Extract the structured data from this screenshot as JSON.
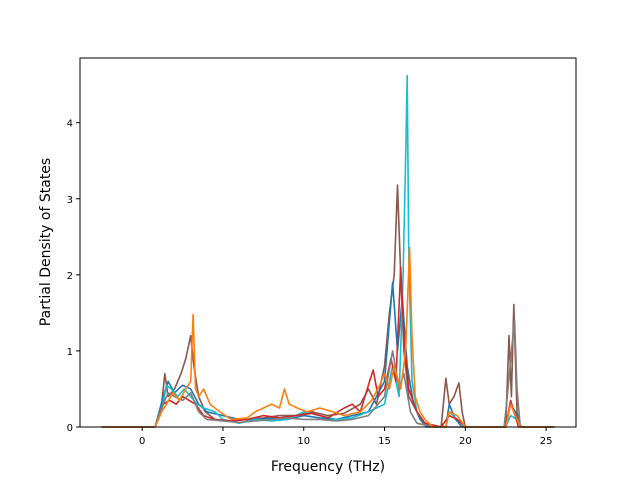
{
  "chart_data": {
    "type": "line",
    "title": "",
    "xlabel": "Frequency (THz)",
    "ylabel": "Partial Density of States",
    "xlim": [
      -3.85,
      26.85
    ],
    "ylim": [
      0,
      4.85
    ],
    "xticks": [
      0,
      5,
      10,
      15,
      20,
      25
    ],
    "yticks": [
      0,
      1,
      2,
      3,
      4
    ],
    "grid": false,
    "legend": "none",
    "series": [
      {
        "color": "#8c564b",
        "points": [
          [
            -2.5,
            0
          ],
          [
            0.8,
            0
          ],
          [
            1.2,
            0.3
          ],
          [
            1.4,
            0.7
          ],
          [
            1.6,
            0.4
          ],
          [
            2.0,
            0.5
          ],
          [
            2.4,
            0.7
          ],
          [
            2.7,
            0.9
          ],
          [
            3.0,
            1.2
          ],
          [
            3.2,
            0.8
          ],
          [
            3.5,
            0.4
          ],
          [
            3.9,
            0.2
          ],
          [
            4.5,
            0.1
          ],
          [
            5.5,
            0.08
          ],
          [
            6.5,
            0.1
          ],
          [
            7.5,
            0.12
          ],
          [
            8.5,
            0.15
          ],
          [
            9.5,
            0.15
          ],
          [
            10.5,
            0.2
          ],
          [
            11.5,
            0.15
          ],
          [
            12.5,
            0.18
          ],
          [
            13.5,
            0.3
          ],
          [
            14.0,
            0.5
          ],
          [
            14.5,
            0.3
          ],
          [
            15.0,
            0.8
          ],
          [
            15.3,
            1.5
          ],
          [
            15.6,
            2.0
          ],
          [
            15.8,
            3.18
          ],
          [
            16.0,
            2.0
          ],
          [
            16.2,
            1.0
          ],
          [
            16.5,
            0.4
          ],
          [
            17.0,
            0.2
          ],
          [
            17.5,
            0.05
          ],
          [
            18.5,
            0
          ],
          [
            18.8,
            0.64
          ],
          [
            19.0,
            0.3
          ],
          [
            19.3,
            0.4
          ],
          [
            19.6,
            0.58
          ],
          [
            19.8,
            0.2
          ],
          [
            20.0,
            0
          ],
          [
            22.5,
            0
          ],
          [
            22.7,
            1.2
          ],
          [
            22.85,
            0.4
          ],
          [
            23.0,
            1.61
          ],
          [
            23.2,
            0.2
          ],
          [
            23.4,
            0
          ],
          [
            25.5,
            0
          ]
        ]
      },
      {
        "color": "#1f77b4",
        "points": [
          [
            -2.5,
            0
          ],
          [
            0.8,
            0
          ],
          [
            1.3,
            0.4
          ],
          [
            1.6,
            0.6
          ],
          [
            2.0,
            0.45
          ],
          [
            2.5,
            0.55
          ],
          [
            3.0,
            0.5
          ],
          [
            3.5,
            0.3
          ],
          [
            4.0,
            0.2
          ],
          [
            5.0,
            0.15
          ],
          [
            6.0,
            0.1
          ],
          [
            7.0,
            0.1
          ],
          [
            8.0,
            0.12
          ],
          [
            9.0,
            0.1
          ],
          [
            10.0,
            0.15
          ],
          [
            11.0,
            0.12
          ],
          [
            12.0,
            0.1
          ],
          [
            13.0,
            0.15
          ],
          [
            14.0,
            0.2
          ],
          [
            15.0,
            0.6
          ],
          [
            15.5,
            1.9
          ],
          [
            15.8,
            1.0
          ],
          [
            16.1,
            1.7
          ],
          [
            16.4,
            0.8
          ],
          [
            16.8,
            0.3
          ],
          [
            17.2,
            0.1
          ],
          [
            17.6,
            0
          ],
          [
            18.8,
            0
          ],
          [
            19.0,
            0.3
          ],
          [
            19.4,
            0.1
          ],
          [
            19.8,
            0
          ],
          [
            22.5,
            0
          ],
          [
            22.8,
            0.3
          ],
          [
            23.1,
            0.2
          ],
          [
            23.4,
            0
          ],
          [
            25.5,
            0
          ]
        ]
      },
      {
        "color": "#17becf",
        "points": [
          [
            -2.5,
            0
          ],
          [
            0.8,
            0
          ],
          [
            1.2,
            0.2
          ],
          [
            1.5,
            0.55
          ],
          [
            1.8,
            0.5
          ],
          [
            2.2,
            0.4
          ],
          [
            2.6,
            0.5
          ],
          [
            3.0,
            0.4
          ],
          [
            3.4,
            0.3
          ],
          [
            3.8,
            0.25
          ],
          [
            4.5,
            0.2
          ],
          [
            5.0,
            0.1
          ],
          [
            6.0,
            0.05
          ],
          [
            7.0,
            0.1
          ],
          [
            8.0,
            0.08
          ],
          [
            9.0,
            0.1
          ],
          [
            10.0,
            0.2
          ],
          [
            11.0,
            0.15
          ],
          [
            12.0,
            0.1
          ],
          [
            13.0,
            0.12
          ],
          [
            14.0,
            0.2
          ],
          [
            15.0,
            0.3
          ],
          [
            15.5,
            0.8
          ],
          [
            15.9,
            0.4
          ],
          [
            16.15,
            2.0
          ],
          [
            16.3,
            3.5
          ],
          [
            16.4,
            4.62
          ],
          [
            16.5,
            2.2
          ],
          [
            16.7,
            0.6
          ],
          [
            17.0,
            0.2
          ],
          [
            17.5,
            0.05
          ],
          [
            18.0,
            0
          ],
          [
            18.8,
            0
          ],
          [
            19.0,
            0.2
          ],
          [
            19.5,
            0.1
          ],
          [
            20.0,
            0
          ],
          [
            22.5,
            0
          ],
          [
            22.8,
            0.15
          ],
          [
            23.2,
            0.1
          ],
          [
            23.5,
            0
          ],
          [
            25.5,
            0
          ]
        ]
      },
      {
        "color": "#d62728",
        "points": [
          [
            -2.5,
            0
          ],
          [
            0.8,
            0
          ],
          [
            1.3,
            0.3
          ],
          [
            1.7,
            0.35
          ],
          [
            2.1,
            0.3
          ],
          [
            2.5,
            0.4
          ],
          [
            2.9,
            0.35
          ],
          [
            3.3,
            0.3
          ],
          [
            3.8,
            0.15
          ],
          [
            4.5,
            0.1
          ],
          [
            5.5,
            0.08
          ],
          [
            6.5,
            0.1
          ],
          [
            7.5,
            0.15
          ],
          [
            8.5,
            0.12
          ],
          [
            9.5,
            0.15
          ],
          [
            10.5,
            0.18
          ],
          [
            11.5,
            0.12
          ],
          [
            12.5,
            0.25
          ],
          [
            13.0,
            0.3
          ],
          [
            13.5,
            0.2
          ],
          [
            14.0,
            0.55
          ],
          [
            14.3,
            0.75
          ],
          [
            14.6,
            0.4
          ],
          [
            15.0,
            0.5
          ],
          [
            15.4,
            0.9
          ],
          [
            15.7,
            0.6
          ],
          [
            16.0,
            2.1
          ],
          [
            16.2,
            1.2
          ],
          [
            16.5,
            0.5
          ],
          [
            17.0,
            0.2
          ],
          [
            17.5,
            0.05
          ],
          [
            18.5,
            0
          ],
          [
            19.0,
            0.15
          ],
          [
            19.5,
            0.1
          ],
          [
            20.0,
            0
          ],
          [
            22.5,
            0
          ],
          [
            22.8,
            0.35
          ],
          [
            23.0,
            0.2
          ],
          [
            23.3,
            0
          ],
          [
            25.5,
            0
          ]
        ]
      },
      {
        "color": "#7f7f7f",
        "points": [
          [
            -2.5,
            0
          ],
          [
            0.8,
            0
          ],
          [
            1.2,
            0.25
          ],
          [
            1.6,
            0.45
          ],
          [
            2.0,
            0.4
          ],
          [
            2.5,
            0.35
          ],
          [
            3.0,
            0.45
          ],
          [
            3.5,
            0.2
          ],
          [
            4.0,
            0.1
          ],
          [
            5.0,
            0.08
          ],
          [
            6.0,
            0.06
          ],
          [
            7.0,
            0.08
          ],
          [
            8.0,
            0.1
          ],
          [
            9.0,
            0.12
          ],
          [
            10.0,
            0.1
          ],
          [
            11.0,
            0.1
          ],
          [
            12.0,
            0.08
          ],
          [
            13.0,
            0.1
          ],
          [
            14.0,
            0.15
          ],
          [
            15.0,
            0.4
          ],
          [
            15.5,
            1.0
          ],
          [
            15.9,
            0.5
          ],
          [
            16.2,
            0.7
          ],
          [
            16.6,
            0.2
          ],
          [
            17.0,
            0.05
          ],
          [
            18.0,
            0
          ],
          [
            22.4,
            0
          ],
          [
            22.6,
            0.4
          ],
          [
            22.9,
            1.1
          ],
          [
            23.05,
            1.4
          ],
          [
            23.2,
            0.5
          ],
          [
            23.4,
            0
          ],
          [
            25.5,
            0
          ]
        ]
      },
      {
        "color": "#ff7f0e",
        "points": [
          [
            -2.5,
            0
          ],
          [
            0.8,
            0
          ],
          [
            1.2,
            0.2
          ],
          [
            1.5,
            0.3
          ],
          [
            1.9,
            0.45
          ],
          [
            2.3,
            0.35
          ],
          [
            2.7,
            0.5
          ],
          [
            3.0,
            0.6
          ],
          [
            3.15,
            1.48
          ],
          [
            3.3,
            0.5
          ],
          [
            3.5,
            0.4
          ],
          [
            3.8,
            0.5
          ],
          [
            4.2,
            0.3
          ],
          [
            4.8,
            0.2
          ],
          [
            5.5,
            0.1
          ],
          [
            6.5,
            0.12
          ],
          [
            7.0,
            0.2
          ],
          [
            7.5,
            0.25
          ],
          [
            8.0,
            0.3
          ],
          [
            8.5,
            0.25
          ],
          [
            8.8,
            0.5
          ],
          [
            9.1,
            0.3
          ],
          [
            9.6,
            0.25
          ],
          [
            10.2,
            0.2
          ],
          [
            11.0,
            0.25
          ],
          [
            11.8,
            0.2
          ],
          [
            12.5,
            0.15
          ],
          [
            13.5,
            0.2
          ],
          [
            14.2,
            0.35
          ],
          [
            14.7,
            0.55
          ],
          [
            15.0,
            0.7
          ],
          [
            15.3,
            0.5
          ],
          [
            15.6,
            0.8
          ],
          [
            16.0,
            0.5
          ],
          [
            16.3,
            1.0
          ],
          [
            16.55,
            2.36
          ],
          [
            16.7,
            1.2
          ],
          [
            16.9,
            0.4
          ],
          [
            17.2,
            0.2
          ],
          [
            17.5,
            0.1
          ],
          [
            18.0,
            0
          ],
          [
            18.8,
            0
          ],
          [
            19.0,
            0.2
          ],
          [
            19.5,
            0.15
          ],
          [
            20.0,
            0
          ],
          [
            22.5,
            0
          ],
          [
            22.8,
            0.3
          ],
          [
            23.1,
            0.15
          ],
          [
            23.4,
            0
          ],
          [
            25.5,
            0
          ]
        ]
      }
    ]
  }
}
